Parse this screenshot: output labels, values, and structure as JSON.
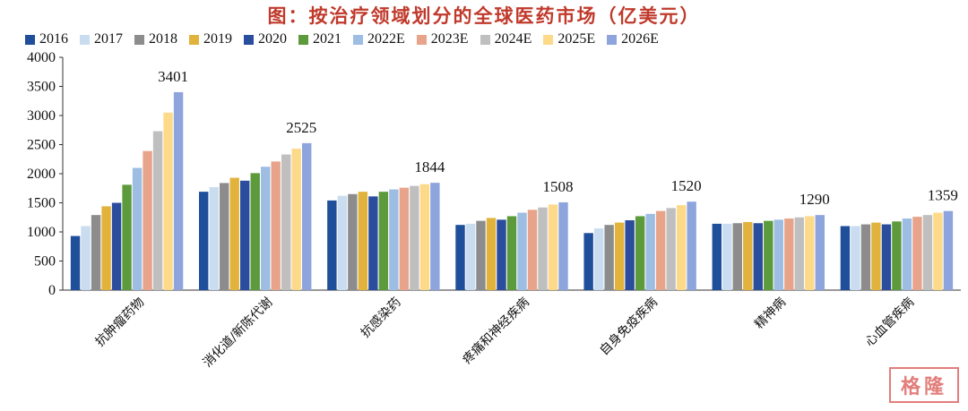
{
  "chart_data": {
    "type": "bar",
    "title": "图：按治疗领域划分的全球医药市场（亿美元）",
    "categories": [
      "抗肿瘤药物",
      "消化道/新陈代谢",
      "抗感染药",
      "疼痛和神经疾病",
      "自身免疫疾病",
      "精神病",
      "心血管疾病"
    ],
    "series": [
      {
        "name": "2016",
        "color": "#1f4e9a",
        "values": [
          930,
          1690,
          1540,
          1120,
          980,
          1140,
          1100
        ]
      },
      {
        "name": "2017",
        "color": "#c9dcf0",
        "values": [
          1100,
          1770,
          1620,
          1140,
          1060,
          1140,
          1100
        ]
      },
      {
        "name": "2018",
        "color": "#8c8c8c",
        "values": [
          1290,
          1840,
          1650,
          1190,
          1120,
          1150,
          1130
        ]
      },
      {
        "name": "2019",
        "color": "#e1b33c",
        "values": [
          1440,
          1930,
          1690,
          1240,
          1160,
          1170,
          1160
        ]
      },
      {
        "name": "2020",
        "color": "#2b4d9e",
        "values": [
          1500,
          1880,
          1610,
          1210,
          1200,
          1150,
          1130
        ]
      },
      {
        "name": "2021",
        "color": "#5c9a3c",
        "values": [
          1810,
          2010,
          1690,
          1270,
          1270,
          1190,
          1180
        ]
      },
      {
        "name": "2022E",
        "color": "#9dbde3",
        "values": [
          2100,
          2120,
          1730,
          1330,
          1310,
          1210,
          1230
        ]
      },
      {
        "name": "2023E",
        "color": "#e8a48b",
        "values": [
          2390,
          2210,
          1760,
          1380,
          1360,
          1230,
          1260
        ]
      },
      {
        "name": "2024E",
        "color": "#bfbfbf",
        "values": [
          2730,
          2330,
          1790,
          1420,
          1410,
          1250,
          1290
        ]
      },
      {
        "name": "2025E",
        "color": "#fdd98a",
        "values": [
          3050,
          2430,
          1820,
          1470,
          1460,
          1270,
          1330
        ]
      },
      {
        "name": "2026E",
        "color": "#8ea4dc",
        "values": [
          3401,
          2525,
          1844,
          1508,
          1520,
          1290,
          1359
        ]
      }
    ],
    "data_labels": [
      "3401",
      "2525",
      "1844",
      "1508",
      "1520",
      "1290",
      "1359"
    ],
    "yticks": [
      "0",
      "500",
      "1000",
      "1500",
      "2000",
      "2500",
      "3000",
      "3500",
      "4000"
    ],
    "ylim": [
      0,
      4000
    ],
    "grid": false,
    "legend_position": "top"
  },
  "watermark": "格隆"
}
